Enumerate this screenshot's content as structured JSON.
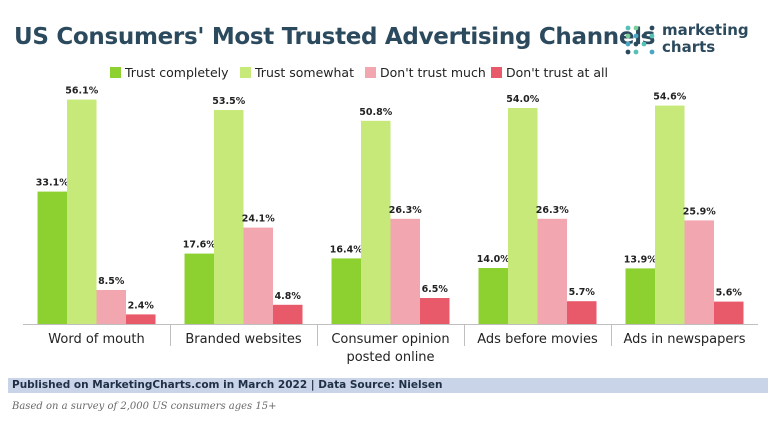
{
  "title": "US Consumers' Most Trusted Advertising Channels",
  "logo": {
    "line1": "marketing",
    "line2": "charts",
    "name": "marketingcharts-logo"
  },
  "colors": {
    "trust_completely": "#8cd12f",
    "trust_somewhat": "#c6e97a",
    "dont_trust_much": "#f2a7b0",
    "dont_trust_at_all": "#e85a6a",
    "title": "#2c4a5e",
    "logo_dots": [
      "#55c1b5",
      "#7bcf9a",
      "#4aa6c4",
      "#2c4a5e"
    ]
  },
  "chart_data": {
    "type": "bar",
    "title": "US Consumers' Most Trusted Advertising Channels",
    "categories": [
      "Word of mouth",
      "Branded websites",
      "Consumer opinion posted online",
      "Ads before movies",
      "Ads in newspapers"
    ],
    "category_lines": [
      [
        "Word of mouth"
      ],
      [
        "Branded websites"
      ],
      [
        "Consumer opinion",
        "posted online"
      ],
      [
        "Ads before movies"
      ],
      [
        "Ads in newspapers"
      ]
    ],
    "series": [
      {
        "name": "Trust completely",
        "key": "trust_completely",
        "values": [
          33.1,
          17.6,
          16.4,
          14.0,
          13.9
        ],
        "labels": [
          "33.1%",
          "17.6%",
          "16.4%",
          "14.0%",
          "13.9%"
        ]
      },
      {
        "name": "Trust somewhat",
        "key": "trust_somewhat",
        "values": [
          56.1,
          53.5,
          50.8,
          54.0,
          54.6
        ],
        "labels": [
          "56.1%",
          "53.5%",
          "50.8%",
          "54.0%",
          "54.6%"
        ]
      },
      {
        "name": "Don't trust much",
        "key": "dont_trust_much",
        "values": [
          8.5,
          24.1,
          26.3,
          26.3,
          25.9
        ],
        "labels": [
          "8.5%",
          "24.1%",
          "26.3%",
          "26.3%",
          "25.9%"
        ]
      },
      {
        "name": "Don't trust at all",
        "key": "dont_trust_at_all",
        "values": [
          2.4,
          4.8,
          6.5,
          5.7,
          5.6
        ],
        "labels": [
          "2.4%",
          "4.8%",
          "6.5%",
          "5.7%",
          "5.6%"
        ]
      }
    ],
    "xlabel": "",
    "ylabel": "",
    "ylim": [
      0,
      60
    ],
    "grid": false,
    "legend": "top-center"
  },
  "footer": {
    "published": "Published on MarketingCharts.com in March 2022 | Data Source: Nielsen",
    "note": "Based on a survey of 2,000 US consumers ages 15+"
  }
}
